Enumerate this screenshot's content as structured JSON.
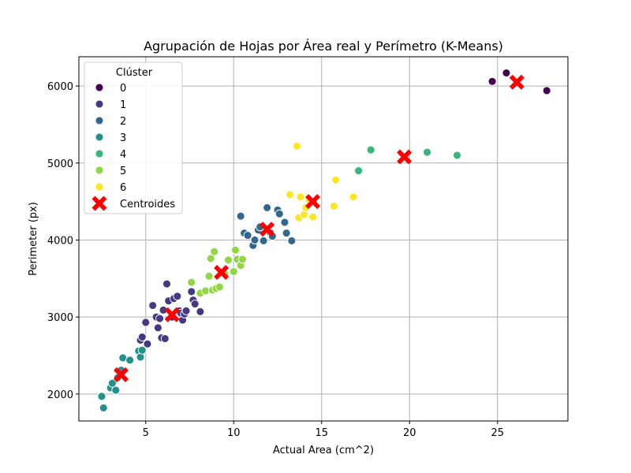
{
  "chart_data": {
    "type": "scatter",
    "title": "Agrupación de Hojas por Área real y Perímetro (K-Means)",
    "xlabel": "Actual Area (cm^2)",
    "ylabel": "Perimeter (px)",
    "xlim": [
      1.2,
      29.0
    ],
    "ylim": [
      1650,
      6380
    ],
    "xticks": [
      5,
      10,
      15,
      20,
      25
    ],
    "yticks": [
      2000,
      3000,
      4000,
      5000,
      6000
    ],
    "grid": true,
    "legend": {
      "title": "Clúster",
      "placement": "top-left",
      "centroid_label": "Centroides"
    },
    "series": [
      {
        "name": "0",
        "color": "#440154",
        "points": [
          [
            24.7,
            6060
          ],
          [
            25.5,
            6170
          ],
          [
            27.8,
            5940
          ]
        ]
      },
      {
        "name": "1",
        "color": "#443983",
        "points": [
          [
            4.7,
            2700
          ],
          [
            4.8,
            2740
          ],
          [
            5.0,
            2930
          ],
          [
            5.1,
            2650
          ],
          [
            5.4,
            3150
          ],
          [
            5.6,
            3000
          ],
          [
            5.7,
            2860
          ],
          [
            5.8,
            2980
          ],
          [
            5.9,
            2730
          ],
          [
            6.0,
            3090
          ],
          [
            6.1,
            2720
          ],
          [
            6.2,
            3430
          ],
          [
            6.3,
            3210
          ],
          [
            6.5,
            3000
          ],
          [
            6.6,
            3240
          ],
          [
            6.8,
            3270
          ],
          [
            6.9,
            3080
          ],
          [
            7.0,
            3050
          ],
          [
            7.1,
            2960
          ],
          [
            7.2,
            3040
          ],
          [
            7.3,
            3080
          ],
          [
            7.6,
            3330
          ],
          [
            7.7,
            3220
          ],
          [
            7.8,
            3170
          ],
          [
            8.1,
            3070
          ]
        ]
      },
      {
        "name": "2",
        "color": "#31688e",
        "points": [
          [
            10.4,
            4310
          ],
          [
            10.6,
            4090
          ],
          [
            10.8,
            4060
          ],
          [
            11.1,
            3930
          ],
          [
            11.2,
            4000
          ],
          [
            11.4,
            4130
          ],
          [
            11.5,
            4170
          ],
          [
            11.7,
            3990
          ],
          [
            11.9,
            4420
          ],
          [
            12.1,
            4090
          ],
          [
            12.2,
            4050
          ],
          [
            12.5,
            4390
          ],
          [
            12.6,
            4340
          ],
          [
            12.9,
            4230
          ],
          [
            13.0,
            4090
          ],
          [
            13.3,
            3990
          ]
        ]
      },
      {
        "name": "3",
        "color": "#21918c",
        "points": [
          [
            2.5,
            1970
          ],
          [
            2.6,
            1820
          ],
          [
            3.0,
            2080
          ],
          [
            3.1,
            2140
          ],
          [
            3.3,
            2050
          ],
          [
            3.4,
            2210
          ],
          [
            3.6,
            2310
          ],
          [
            3.7,
            2470
          ],
          [
            4.1,
            2440
          ],
          [
            4.6,
            2560
          ],
          [
            4.7,
            2480
          ],
          [
            4.8,
            2570
          ]
        ]
      },
      {
        "name": "4",
        "color": "#35b779",
        "points": [
          [
            17.1,
            4900
          ],
          [
            17.8,
            5170
          ],
          [
            21.0,
            5140
          ],
          [
            22.7,
            5100
          ]
        ]
      },
      {
        "name": "5",
        "color": "#90d743",
        "points": [
          [
            7.6,
            3450
          ],
          [
            8.1,
            3310
          ],
          [
            8.4,
            3340
          ],
          [
            8.6,
            3530
          ],
          [
            8.7,
            3760
          ],
          [
            8.8,
            3350
          ],
          [
            8.9,
            3850
          ],
          [
            9.0,
            3370
          ],
          [
            9.2,
            3390
          ],
          [
            9.5,
            3560
          ],
          [
            9.7,
            3740
          ],
          [
            10.0,
            3590
          ],
          [
            10.1,
            3870
          ],
          [
            10.2,
            3750
          ],
          [
            10.4,
            3670
          ],
          [
            10.5,
            3750
          ]
        ]
      },
      {
        "name": "6",
        "color": "#fde725",
        "points": [
          [
            13.2,
            4590
          ],
          [
            13.6,
            5220
          ],
          [
            13.7,
            4290
          ],
          [
            13.8,
            4560
          ],
          [
            14.0,
            4330
          ],
          [
            14.1,
            4420
          ],
          [
            14.3,
            4520
          ],
          [
            14.5,
            4300
          ],
          [
            15.7,
            4440
          ],
          [
            15.8,
            4780
          ],
          [
            16.8,
            4560
          ]
        ]
      }
    ],
    "centroids": {
      "color": "#ff0000",
      "points": [
        [
          26.1,
          6050
        ],
        [
          6.5,
          3030
        ],
        [
          11.9,
          4140
        ],
        [
          3.6,
          2250
        ],
        [
          19.7,
          5080
        ],
        [
          9.3,
          3580
        ],
        [
          14.5,
          4500
        ]
      ]
    }
  }
}
